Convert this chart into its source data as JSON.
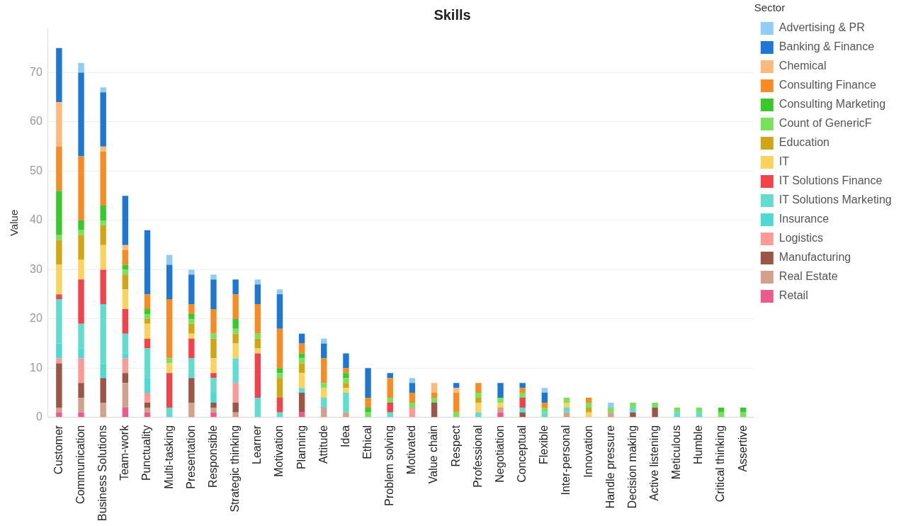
{
  "chart_data": {
    "type": "bar",
    "title": "Skills",
    "ylabel": "Value",
    "legend_title": "Sector",
    "stacked": true,
    "grid": "y",
    "legend": "top right",
    "categories": [
      "Customer",
      "Communication",
      "Business Solutions",
      "Team-work",
      "Punctuality",
      "Multi-tasking",
      "Presentation",
      "Responsible",
      "Strategic thinking",
      "Learner",
      "Motivation",
      "Planning",
      "Attitude",
      "Idea",
      "Ethical",
      "Problem solving",
      "Motivated",
      "Value chain",
      "Respect",
      "Professional",
      "Negotiation",
      "Conceptual",
      "Flexible",
      "Inter-personal",
      "Innovation",
      "Handle pressure",
      "Decision making",
      "Active listening",
      "Meticulous",
      "Humble",
      "Critical thinking",
      "Assertive"
    ],
    "ylim": [
      0,
      79
    ],
    "yticks": [
      0,
      10,
      20,
      30,
      40,
      50,
      60,
      70
    ],
    "series": [
      {
        "name": "Retail",
        "color": "#ec5a8e",
        "values": [
          1,
          1,
          null,
          2,
          1,
          null,
          null,
          1,
          null,
          null,
          null,
          1,
          null,
          null,
          null,
          null,
          null,
          null,
          null,
          null,
          1,
          null,
          null,
          null,
          null,
          null,
          null,
          null,
          null,
          null,
          null,
          null
        ]
      },
      {
        "name": "Real Estate",
        "color": "#d3a18b",
        "values": [
          1,
          3,
          3,
          5,
          1,
          null,
          3,
          1,
          1,
          null,
          null,
          null,
          2,
          1,
          null,
          null,
          null,
          null,
          null,
          null,
          1,
          null,
          null,
          1,
          null,
          1,
          null,
          null,
          null,
          null,
          null,
          null
        ]
      },
      {
        "name": "Manufacturing",
        "color": "#9b5648",
        "values": [
          9,
          3,
          5,
          2,
          1,
          null,
          5,
          1,
          2,
          null,
          null,
          4,
          null,
          null,
          null,
          null,
          null,
          3,
          null,
          null,
          null,
          1,
          null,
          null,
          null,
          null,
          1,
          2,
          null,
          null,
          null,
          null
        ]
      },
      {
        "name": "Logistics",
        "color": "#fb9b98",
        "values": [
          1,
          5,
          null,
          3,
          2,
          null,
          null,
          null,
          4,
          null,
          null,
          null,
          null,
          null,
          null,
          null,
          2,
          null,
          null,
          null,
          null,
          null,
          null,
          null,
          null,
          null,
          null,
          null,
          null,
          null,
          null,
          null
        ]
      },
      {
        "name": "Insurance",
        "color": "#4ed9d3",
        "values": [
          3,
          2,
          3,
          1,
          3,
          null,
          null,
          2,
          null,
          null,
          null,
          null,
          null,
          null,
          null,
          null,
          null,
          null,
          null,
          null,
          null,
          null,
          null,
          null,
          null,
          null,
          null,
          null,
          null,
          null,
          null,
          null
        ]
      },
      {
        "name": "IT Solutions Marketing",
        "color": "#62dccf",
        "values": [
          9,
          5,
          12,
          4,
          6,
          2,
          4,
          3,
          5,
          4,
          1,
          1,
          2,
          4,
          null,
          1,
          null,
          null,
          null,
          1,
          null,
          1,
          1,
          1,
          null,
          null,
          1,
          null,
          1,
          1,
          null,
          null
        ]
      },
      {
        "name": "IT Solutions Finance",
        "color": "#f2434a",
        "values": [
          1,
          9,
          7,
          5,
          2,
          7,
          4,
          1,
          null,
          9,
          3,
          null,
          null,
          null,
          null,
          2,
          null,
          null,
          null,
          null,
          null,
          2,
          null,
          null,
          null,
          null,
          null,
          null,
          null,
          null,
          null,
          null
        ]
      },
      {
        "name": "IT",
        "color": "#f9d35b",
        "values": [
          6,
          4,
          5,
          4,
          3,
          2,
          1,
          3,
          3,
          1,
          null,
          3,
          2,
          1,
          null,
          null,
          null,
          null,
          null,
          2,
          1,
          null,
          null,
          1,
          1,
          null,
          null,
          null,
          null,
          null,
          null,
          null
        ]
      },
      {
        "name": "Education",
        "color": "#d1a615",
        "values": [
          5,
          5,
          4,
          3,
          1,
          null,
          2,
          4,
          2,
          2,
          4,
          2,
          null,
          1,
          null,
          null,
          null,
          null,
          null,
          1,
          null,
          null,
          null,
          null,
          1,
          null,
          null,
          null,
          null,
          null,
          null,
          null
        ]
      },
      {
        "name": "Count of GenericF",
        "color": "#77e25a",
        "values": [
          1,
          1,
          1,
          1,
          1,
          1,
          1,
          1,
          1,
          1,
          1,
          1,
          1,
          1,
          1,
          1,
          1,
          1,
          1,
          1,
          1,
          1,
          1,
          1,
          1,
          1,
          1,
          1,
          1,
          1,
          1,
          1
        ]
      },
      {
        "name": "Consulting Marketing",
        "color": "#3ac92a",
        "values": [
          9,
          2,
          3,
          1,
          1,
          null,
          1,
          null,
          2,
          null,
          1,
          1,
          null,
          1,
          1,
          null,
          null,
          null,
          null,
          null,
          null,
          null,
          null,
          null,
          null,
          null,
          null,
          null,
          null,
          null,
          1,
          1
        ]
      },
      {
        "name": "Consulting Finance",
        "color": "#f78c22",
        "values": [
          9,
          13,
          11,
          3,
          3,
          12,
          2,
          5,
          5,
          6,
          8,
          2,
          5,
          1,
          2,
          4,
          2,
          1,
          4,
          2,
          null,
          1,
          1,
          null,
          1,
          null,
          null,
          null,
          null,
          null,
          null,
          null
        ]
      },
      {
        "name": "Chemical",
        "color": "#ffb97a",
        "values": [
          9,
          null,
          1,
          1,
          null,
          null,
          null,
          null,
          null,
          null,
          null,
          null,
          null,
          null,
          null,
          null,
          null,
          2,
          1,
          null,
          null,
          null,
          null,
          null,
          null,
          null,
          null,
          null,
          null,
          null,
          null,
          null
        ]
      },
      {
        "name": "Banking & Finance",
        "color": "#1f77d4",
        "values": [
          11,
          17,
          11,
          10,
          13,
          7,
          6,
          6,
          3,
          4,
          7,
          2,
          3,
          3,
          6,
          1,
          2,
          null,
          1,
          null,
          3,
          1,
          2,
          null,
          null,
          null,
          null,
          null,
          null,
          null,
          null,
          null
        ]
      },
      {
        "name": "Advertising & PR",
        "color": "#8fcdf5",
        "values": [
          null,
          2,
          1,
          null,
          null,
          2,
          1,
          1,
          null,
          1,
          1,
          null,
          1,
          null,
          null,
          null,
          1,
          null,
          null,
          null,
          null,
          null,
          1,
          null,
          null,
          1,
          null,
          null,
          null,
          null,
          null,
          null
        ]
      }
    ]
  }
}
